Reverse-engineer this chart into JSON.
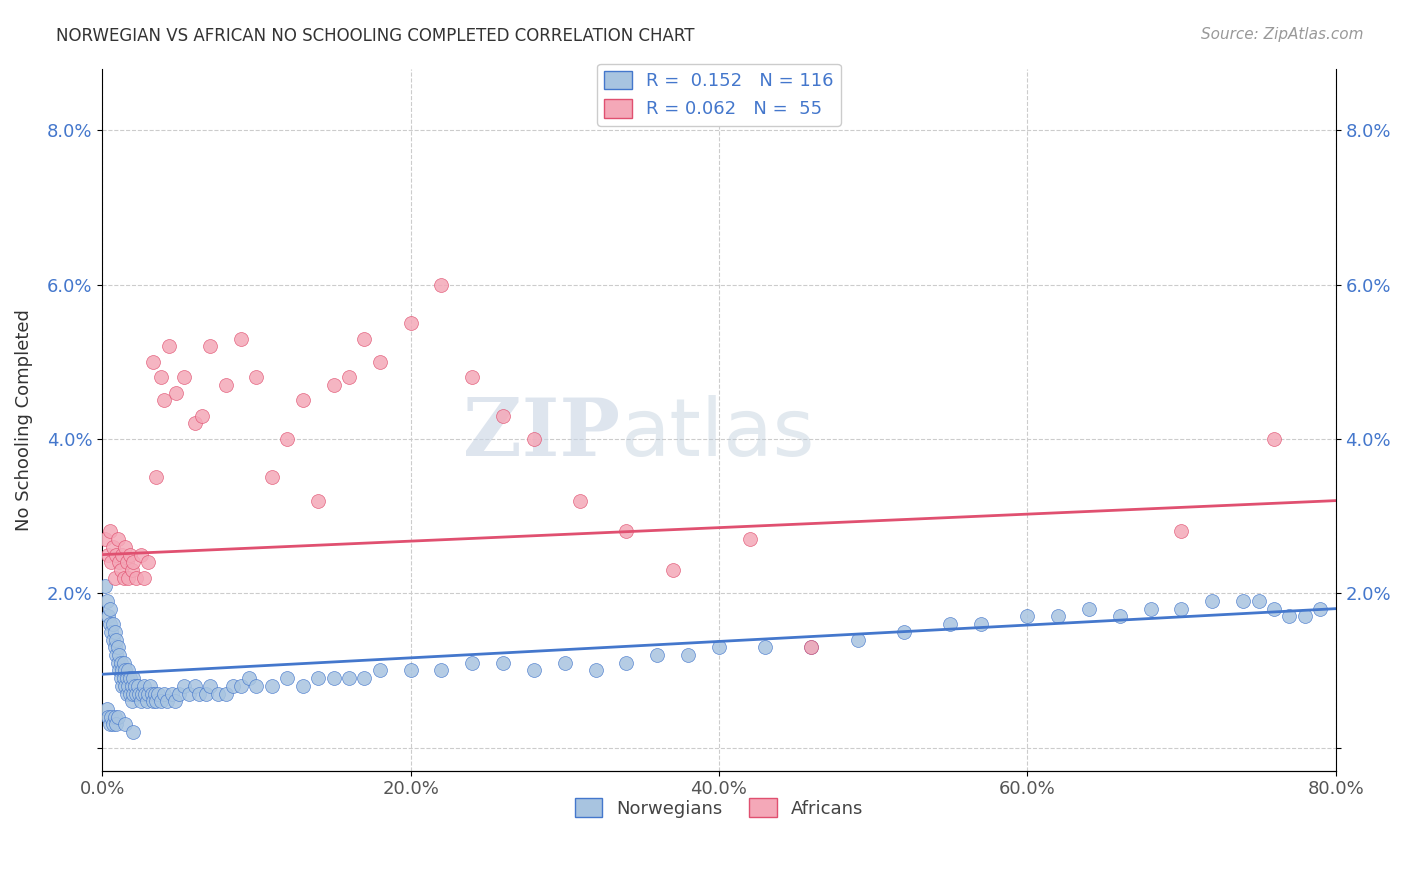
{
  "title": "NORWEGIAN VS AFRICAN NO SCHOOLING COMPLETED CORRELATION CHART",
  "source": "Source: ZipAtlas.com",
  "ylabel": "No Schooling Completed",
  "xlim": [
    0,
    0.8
  ],
  "ylim": [
    -0.003,
    0.088
  ],
  "yticks": [
    0.0,
    0.02,
    0.04,
    0.06,
    0.08
  ],
  "ytick_labels": [
    "",
    "2.0%",
    "4.0%",
    "6.0%",
    "8.0%"
  ],
  "xticks": [
    0.0,
    0.2,
    0.4,
    0.6,
    0.8
  ],
  "xtick_labels": [
    "0.0%",
    "20.0%",
    "40.0%",
    "60.0%",
    "80.0%"
  ],
  "norwegians_color": "#a8c4e0",
  "africans_color": "#f4a8b8",
  "line_norwegian_color": "#4477cc",
  "line_african_color": "#e05070",
  "R_norwegian": 0.152,
  "N_norwegian": 116,
  "R_african": 0.062,
  "N_african": 55,
  "watermark_zip": "ZIP",
  "watermark_atlas": "atlas",
  "nor_x": [
    0.002,
    0.003,
    0.004,
    0.005,
    0.005,
    0.006,
    0.007,
    0.007,
    0.008,
    0.008,
    0.009,
    0.009,
    0.01,
    0.01,
    0.011,
    0.011,
    0.012,
    0.012,
    0.013,
    0.013,
    0.014,
    0.014,
    0.015,
    0.015,
    0.016,
    0.016,
    0.017,
    0.017,
    0.018,
    0.018,
    0.019,
    0.019,
    0.02,
    0.02,
    0.021,
    0.022,
    0.023,
    0.024,
    0.025,
    0.026,
    0.027,
    0.028,
    0.029,
    0.03,
    0.031,
    0.032,
    0.033,
    0.034,
    0.035,
    0.036,
    0.038,
    0.04,
    0.042,
    0.045,
    0.047,
    0.05,
    0.053,
    0.056,
    0.06,
    0.063,
    0.067,
    0.07,
    0.075,
    0.08,
    0.085,
    0.09,
    0.095,
    0.1,
    0.11,
    0.12,
    0.13,
    0.14,
    0.15,
    0.16,
    0.17,
    0.18,
    0.2,
    0.22,
    0.24,
    0.26,
    0.28,
    0.3,
    0.32,
    0.34,
    0.36,
    0.38,
    0.4,
    0.43,
    0.46,
    0.49,
    0.52,
    0.55,
    0.57,
    0.6,
    0.62,
    0.64,
    0.66,
    0.68,
    0.7,
    0.72,
    0.74,
    0.75,
    0.76,
    0.77,
    0.78,
    0.79,
    0.003,
    0.004,
    0.005,
    0.006,
    0.007,
    0.008,
    0.009,
    0.01,
    0.015,
    0.02
  ],
  "nor_y": [
    0.021,
    0.019,
    0.017,
    0.018,
    0.016,
    0.015,
    0.014,
    0.016,
    0.013,
    0.015,
    0.012,
    0.014,
    0.011,
    0.013,
    0.01,
    0.012,
    0.009,
    0.011,
    0.008,
    0.01,
    0.009,
    0.011,
    0.008,
    0.01,
    0.009,
    0.007,
    0.008,
    0.01,
    0.007,
    0.009,
    0.008,
    0.006,
    0.007,
    0.009,
    0.008,
    0.007,
    0.008,
    0.007,
    0.006,
    0.007,
    0.008,
    0.007,
    0.006,
    0.007,
    0.008,
    0.007,
    0.006,
    0.007,
    0.006,
    0.007,
    0.006,
    0.007,
    0.006,
    0.007,
    0.006,
    0.007,
    0.008,
    0.007,
    0.008,
    0.007,
    0.007,
    0.008,
    0.007,
    0.007,
    0.008,
    0.008,
    0.009,
    0.008,
    0.008,
    0.009,
    0.008,
    0.009,
    0.009,
    0.009,
    0.009,
    0.01,
    0.01,
    0.01,
    0.011,
    0.011,
    0.01,
    0.011,
    0.01,
    0.011,
    0.012,
    0.012,
    0.013,
    0.013,
    0.013,
    0.014,
    0.015,
    0.016,
    0.016,
    0.017,
    0.017,
    0.018,
    0.017,
    0.018,
    0.018,
    0.019,
    0.019,
    0.019,
    0.018,
    0.017,
    0.017,
    0.018,
    0.005,
    0.004,
    0.003,
    0.004,
    0.003,
    0.004,
    0.003,
    0.004,
    0.003,
    0.002
  ],
  "afr_x": [
    0.002,
    0.004,
    0.005,
    0.006,
    0.007,
    0.008,
    0.009,
    0.01,
    0.011,
    0.012,
    0.013,
    0.014,
    0.015,
    0.016,
    0.017,
    0.018,
    0.019,
    0.02,
    0.022,
    0.025,
    0.027,
    0.03,
    0.033,
    0.035,
    0.038,
    0.04,
    0.043,
    0.048,
    0.053,
    0.06,
    0.065,
    0.07,
    0.08,
    0.09,
    0.1,
    0.11,
    0.12,
    0.13,
    0.14,
    0.15,
    0.16,
    0.17,
    0.18,
    0.2,
    0.22,
    0.24,
    0.26,
    0.28,
    0.31,
    0.34,
    0.37,
    0.42,
    0.46,
    0.7,
    0.76
  ],
  "afr_y": [
    0.027,
    0.025,
    0.028,
    0.024,
    0.026,
    0.022,
    0.025,
    0.027,
    0.024,
    0.023,
    0.025,
    0.022,
    0.026,
    0.024,
    0.022,
    0.025,
    0.023,
    0.024,
    0.022,
    0.025,
    0.022,
    0.024,
    0.05,
    0.035,
    0.048,
    0.045,
    0.052,
    0.046,
    0.048,
    0.042,
    0.043,
    0.052,
    0.047,
    0.053,
    0.048,
    0.035,
    0.04,
    0.045,
    0.032,
    0.047,
    0.048,
    0.053,
    0.05,
    0.055,
    0.06,
    0.048,
    0.043,
    0.04,
    0.032,
    0.028,
    0.023,
    0.027,
    0.013,
    0.028,
    0.04
  ]
}
